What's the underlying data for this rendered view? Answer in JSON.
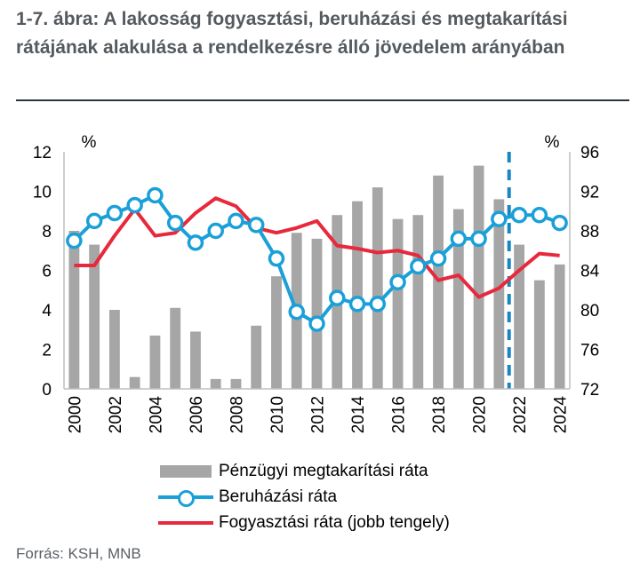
{
  "title": "1-7. ábra: A lakosság fogyasztási, beruházási és megtakarítási rátájának alakulása a rendelkezésre álló jövedelem arányában",
  "source": "Forrás: KSH, MNB",
  "colors": {
    "bars": "#a6a6a6",
    "investment": "#1aa0d8",
    "consumption": "#e8283c",
    "forecast_line": "#1a86c0"
  },
  "chart_data": {
    "type": "bar",
    "x": [
      2000,
      2001,
      2002,
      2003,
      2004,
      2005,
      2006,
      2007,
      2008,
      2009,
      2010,
      2011,
      2012,
      2013,
      2014,
      2015,
      2016,
      2017,
      2018,
      2019,
      2020,
      2021,
      2022,
      2023,
      2024
    ],
    "x_tick_labels": [
      "2000",
      "2002",
      "2004",
      "2006",
      "2008",
      "2010",
      "2012",
      "2014",
      "2016",
      "2018",
      "2020",
      "2022",
      "2024"
    ],
    "left_axis": {
      "unit": "%",
      "ylim": [
        0,
        12
      ],
      "ticks": [
        "0",
        "2",
        "4",
        "6",
        "8",
        "10",
        "12"
      ]
    },
    "right_axis": {
      "unit": "%",
      "ylim": [
        72,
        96
      ],
      "ticks": [
        "72",
        "76",
        "80",
        "84",
        "88",
        "92",
        "96"
      ]
    },
    "forecast_start_after": 2021,
    "series": [
      {
        "name": "Pénzügyi megtakarítási ráta",
        "type": "bar",
        "axis": "left",
        "values": [
          8.0,
          7.3,
          4.0,
          0.6,
          2.7,
          4.1,
          2.9,
          0.5,
          0.5,
          3.2,
          5.7,
          7.9,
          7.6,
          8.8,
          9.5,
          10.2,
          8.6,
          8.8,
          10.8,
          9.1,
          11.3,
          9.6,
          7.3,
          5.5,
          6.3
        ]
      },
      {
        "name": "Beruházási ráta",
        "type": "line-markers",
        "axis": "left",
        "values": [
          7.5,
          8.5,
          8.9,
          9.3,
          9.8,
          8.4,
          7.4,
          8.0,
          8.5,
          8.3,
          6.6,
          3.9,
          3.3,
          4.6,
          4.3,
          4.3,
          5.4,
          6.2,
          6.6,
          7.6,
          7.6,
          8.6,
          8.8,
          8.8,
          8.4
        ]
      },
      {
        "name": "Fogyasztási ráta (jobb tengely)",
        "type": "line",
        "axis": "right",
        "values": [
          84.5,
          84.5,
          87.5,
          90.2,
          87.5,
          87.8,
          89.8,
          91.3,
          90.5,
          88.3,
          87.8,
          88.3,
          89.0,
          86.5,
          86.2,
          85.8,
          86.0,
          85.5,
          83.0,
          83.5,
          81.3,
          82.2,
          84.0,
          85.7,
          85.5
        ]
      }
    ]
  }
}
